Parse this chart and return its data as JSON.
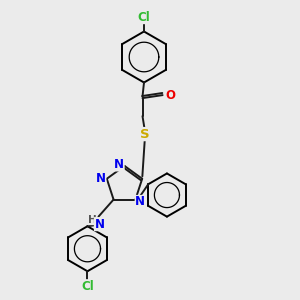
{
  "background_color": "#ebebeb",
  "bond_color": "#1a1a1a",
  "atom_colors": {
    "N": "#0000ee",
    "O": "#ee0000",
    "S": "#ccaa00",
    "Cl": "#33bb33",
    "H": "#555555"
  },
  "figsize": [
    3.0,
    3.0
  ],
  "dpi": 100,
  "xlim": [
    0,
    10
  ],
  "ylim": [
    0,
    10
  ]
}
